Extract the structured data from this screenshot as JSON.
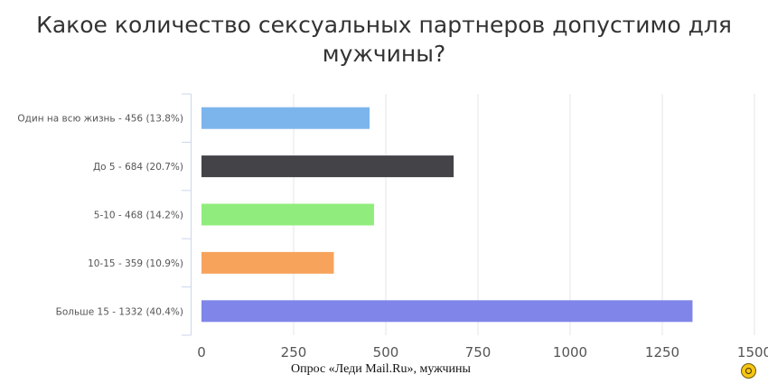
{
  "chart_data": {
    "type": "bar",
    "orientation": "horizontal",
    "title": "Какое количество сексуальных партнеров допустимо для мужчины?",
    "categories": [
      "Один на всю жизнь - 456 (13.8%)",
      "До 5 - 684 (20.7%)",
      "5-10 - 468 (14.2%)",
      "10-15 - 359 (10.9%)",
      "Больше 15 - 1332 (40.4%)"
    ],
    "values": [
      456,
      684,
      468,
      359,
      1332
    ],
    "colors": [
      "#7cb5ec",
      "#434348",
      "#90ed7d",
      "#f7a35c",
      "#8085e9"
    ],
    "xlim": [
      0,
      1500
    ],
    "xticks": [
      0,
      250,
      500,
      750,
      1000,
      1250,
      1500
    ],
    "grid": true
  },
  "caption": "Опрос «Леди Mail.Ru», мужчины",
  "logo_icon": "smiley-logo-icon"
}
